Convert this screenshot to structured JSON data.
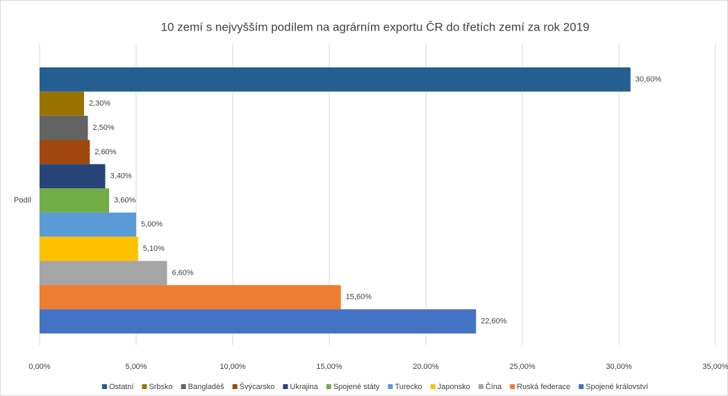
{
  "chart_data": {
    "type": "bar",
    "orientation": "horizontal",
    "title": "10 zemí s nejvyšším podílem na agrárním exportu ČR do třetích zemí za rok 2019",
    "categories": [
      "Podíl"
    ],
    "series": [
      {
        "name": "Ostatní",
        "color": "#255e91",
        "values": [
          30.6
        ],
        "value_labels": [
          "30,60%"
        ]
      },
      {
        "name": "Srbsko",
        "color": "#997300",
        "values": [
          2.3
        ],
        "value_labels": [
          "2,30%"
        ]
      },
      {
        "name": "Bangladéš",
        "color": "#636363",
        "values": [
          2.5
        ],
        "value_labels": [
          "2,50%"
        ]
      },
      {
        "name": "Švýcarsko",
        "color": "#9e480e",
        "values": [
          2.6
        ],
        "value_labels": [
          "2,60%"
        ]
      },
      {
        "name": "Ukrajina",
        "color": "#264478",
        "values": [
          3.4
        ],
        "value_labels": [
          "3,40%"
        ]
      },
      {
        "name": "Spojené státy",
        "color": "#70ad47",
        "values": [
          3.6
        ],
        "value_labels": [
          "3,60%"
        ]
      },
      {
        "name": "Turecko",
        "color": "#5b9bd5",
        "values": [
          5.0
        ],
        "value_labels": [
          "5,00%"
        ]
      },
      {
        "name": "Japonsko",
        "color": "#ffc000",
        "values": [
          5.1
        ],
        "value_labels": [
          "5,10%"
        ]
      },
      {
        "name": "Čína",
        "color": "#a5a5a5",
        "values": [
          6.6
        ],
        "value_labels": [
          "6,60%"
        ]
      },
      {
        "name": "Ruská federace",
        "color": "#ed7d31",
        "values": [
          15.6
        ],
        "value_labels": [
          "15,60%"
        ]
      },
      {
        "name": "Spojené království",
        "color": "#4472c4",
        "values": [
          22.6
        ],
        "value_labels": [
          "22,60%"
        ]
      }
    ],
    "xlim": [
      0,
      35
    ],
    "xticks": [
      {
        "value": 0,
        "label": "0,00%"
      },
      {
        "value": 5,
        "label": "5,00%"
      },
      {
        "value": 10,
        "label": "10,00%"
      },
      {
        "value": 15,
        "label": "15,00%"
      },
      {
        "value": 20,
        "label": "20,00%"
      },
      {
        "value": 25,
        "label": "25,00%"
      },
      {
        "value": 30,
        "label": "30,00%"
      },
      {
        "value": 35,
        "label": "35,00%"
      }
    ],
    "grid": true,
    "legend": "bottom"
  }
}
